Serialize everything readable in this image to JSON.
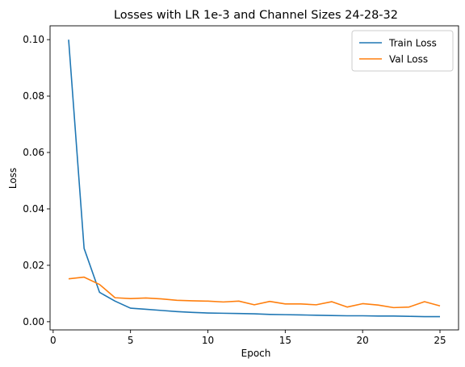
{
  "chart_data": {
    "type": "line",
    "title": "Losses with LR 1e-3 and Channel Sizes 24-28-32",
    "xlabel": "Epoch",
    "ylabel": "Loss",
    "xlim": [
      -0.2,
      26.2
    ],
    "ylim": [
      -0.0029,
      0.1049
    ],
    "xticks": [
      0,
      5,
      10,
      15,
      20,
      25
    ],
    "xtick_labels": [
      "0",
      "5",
      "10",
      "15",
      "20",
      "25"
    ],
    "yticks": [
      0.0,
      0.02,
      0.04,
      0.06,
      0.08,
      0.1
    ],
    "ytick_labels": [
      "0.00",
      "0.02",
      "0.04",
      "0.06",
      "0.08",
      "0.10"
    ],
    "grid": false,
    "legend_position": "top-right",
    "x": [
      1,
      2,
      3,
      4,
      5,
      6,
      7,
      8,
      9,
      10,
      11,
      12,
      13,
      14,
      15,
      16,
      17,
      18,
      19,
      20,
      21,
      22,
      23,
      24,
      25
    ],
    "series": [
      {
        "name": "Train Loss",
        "color": "#1f77b4",
        "values": [
          0.1,
          0.026,
          0.0104,
          0.0073,
          0.0048,
          0.0044,
          0.004,
          0.0036,
          0.0033,
          0.0031,
          0.003,
          0.0029,
          0.0028,
          0.0026,
          0.0025,
          0.0024,
          0.0023,
          0.0022,
          0.0021,
          0.0021,
          0.002,
          0.002,
          0.0019,
          0.0018,
          0.0018
        ]
      },
      {
        "name": "Val Loss",
        "color": "#ff7f0e",
        "values": [
          0.0152,
          0.0158,
          0.0132,
          0.0085,
          0.0082,
          0.0084,
          0.0081,
          0.0076,
          0.0074,
          0.0073,
          0.007,
          0.0073,
          0.006,
          0.0072,
          0.0063,
          0.0063,
          0.006,
          0.0071,
          0.0052,
          0.0064,
          0.0059,
          0.005,
          0.0052,
          0.0071,
          0.0056
        ]
      }
    ]
  }
}
